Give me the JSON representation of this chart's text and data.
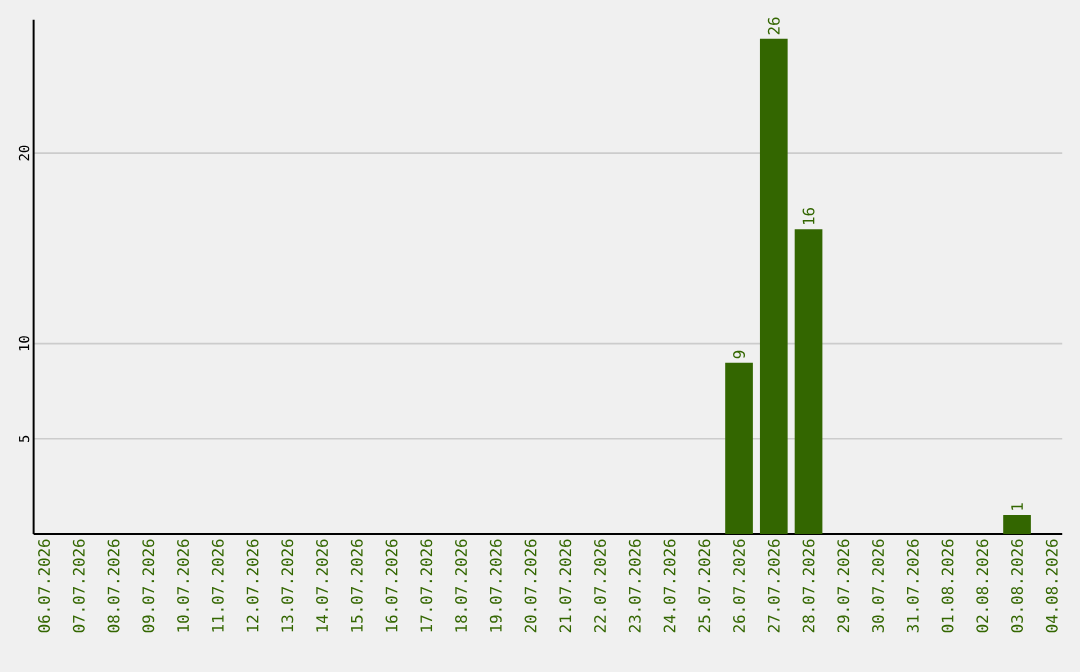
{
  "chart_data": {
    "type": "bar",
    "categories": [
      "06.07.2026",
      "07.07.2026",
      "08.07.2026",
      "09.07.2026",
      "10.07.2026",
      "11.07.2026",
      "12.07.2026",
      "13.07.2026",
      "14.07.2026",
      "15.07.2026",
      "16.07.2026",
      "17.07.2026",
      "18.07.2026",
      "19.07.2026",
      "20.07.2026",
      "21.07.2026",
      "22.07.2026",
      "23.07.2026",
      "24.07.2026",
      "25.07.2026",
      "26.07.2026",
      "27.07.2026",
      "28.07.2026",
      "29.07.2026",
      "30.07.2026",
      "31.07.2026",
      "01.08.2026",
      "02.08.2026",
      "03.08.2026",
      "04.08.2026"
    ],
    "values": [
      0,
      0,
      0,
      0,
      0,
      0,
      0,
      0,
      0,
      0,
      0,
      0,
      0,
      0,
      0,
      0,
      0,
      0,
      0,
      0,
      9,
      26,
      16,
      0,
      0,
      0,
      0,
      0,
      1,
      0
    ],
    "value_labels": [
      null,
      null,
      null,
      null,
      null,
      null,
      null,
      null,
      null,
      null,
      null,
      null,
      null,
      null,
      null,
      null,
      null,
      null,
      null,
      null,
      "9",
      "26",
      "16",
      null,
      null,
      null,
      null,
      null,
      "1",
      null
    ],
    "color": "#336600",
    "ylim": [
      0,
      27
    ],
    "yticks": [
      5,
      10,
      20
    ],
    "grid": "y"
  }
}
